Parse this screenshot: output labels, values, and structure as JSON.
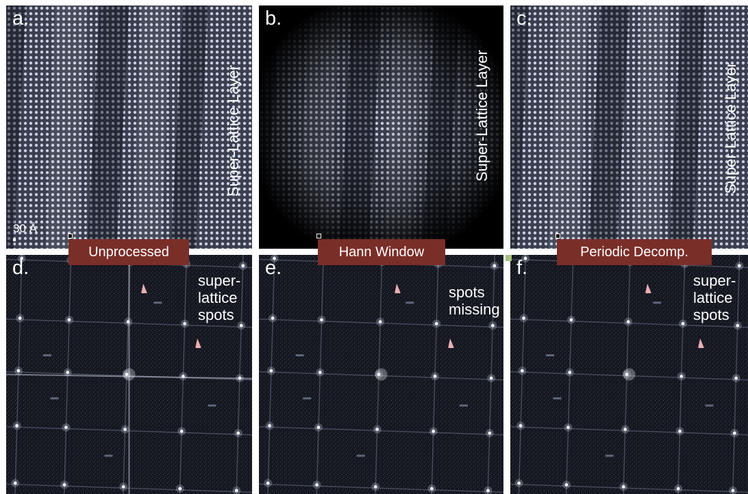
{
  "panels": [
    {
      "letter": "a.",
      "kind": "lattice",
      "window": "none",
      "vertical_label": "Super-Lattice Layer",
      "scale_label": "30 Å",
      "caption": "Unprocessed"
    },
    {
      "letter": "b.",
      "kind": "lattice",
      "window": "hann",
      "vertical_label": "Super-Lattice Layer",
      "caption": "Hann Window"
    },
    {
      "letter": "c.",
      "kind": "lattice",
      "window": "none",
      "vertical_label": "Super-Lattice Layer",
      "caption": "Periodic Decomp."
    },
    {
      "letter": "d.",
      "kind": "fft",
      "cross_artifacts": true,
      "side_lines": [
        "super-",
        "lattice",
        "spots"
      ]
    },
    {
      "letter": "e.",
      "kind": "fft",
      "cross_artifacts": false,
      "side_lines": [
        "spots",
        "missing"
      ]
    },
    {
      "letter": "f.",
      "kind": "fft",
      "cross_artifacts": false,
      "side_lines": [
        "super-",
        "lattice",
        "spots"
      ]
    }
  ],
  "colors": {
    "caption_bg": "#7a2e28",
    "arrow": "#e9aeb0",
    "lattice_dot": "#c9cfe3",
    "fft_bg": "#15171f",
    "accent_square": "#a7c27e"
  }
}
